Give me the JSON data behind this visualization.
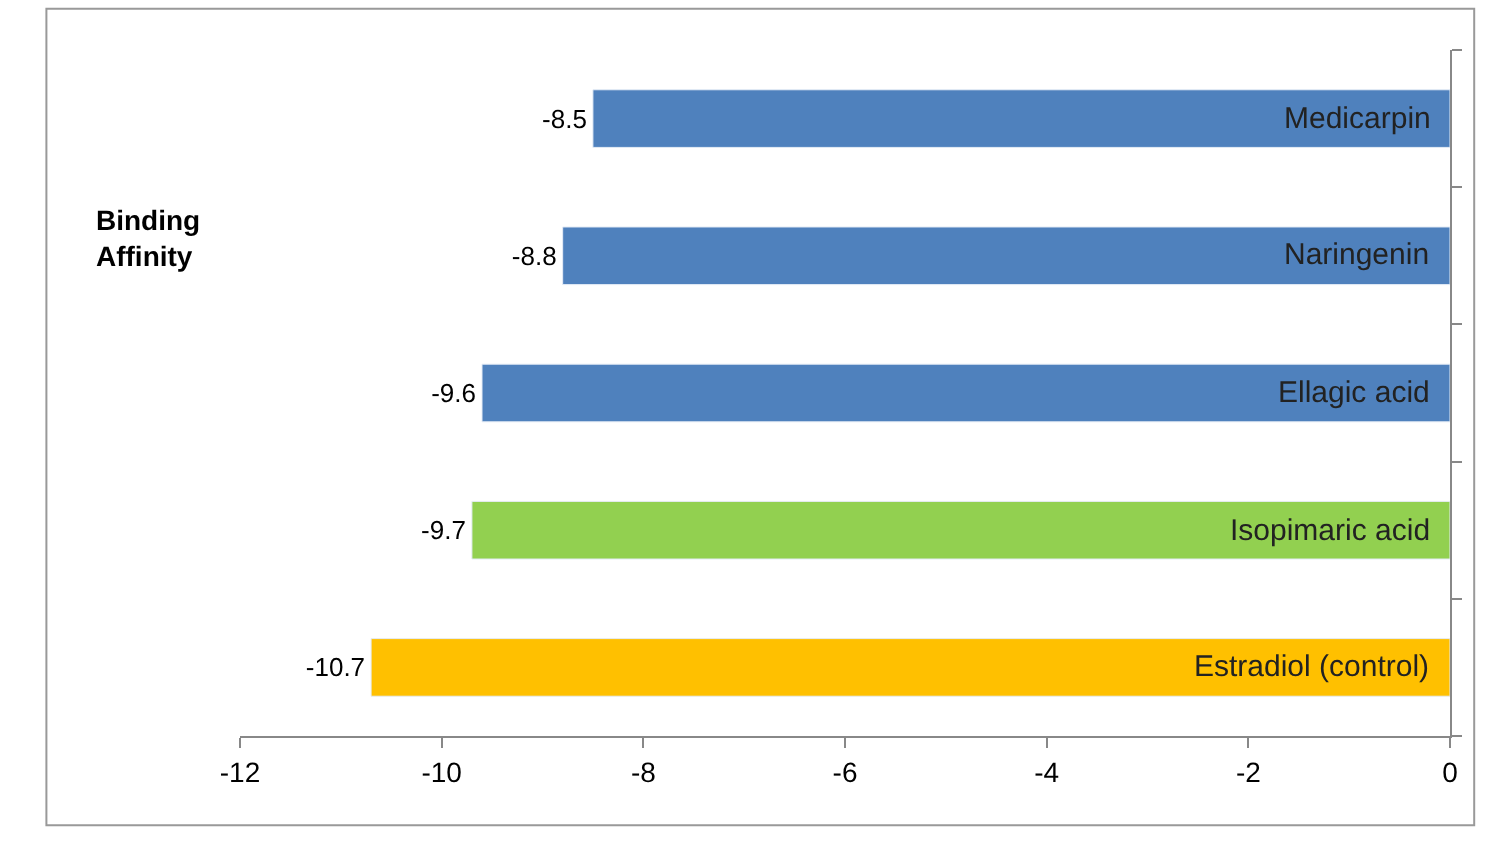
{
  "chart_data": {
    "type": "bar",
    "orientation": "horizontal",
    "ylabel": "Binding Affinity",
    "categories": [
      "Medicarpin",
      "Naringenin",
      "Ellagic acid",
      "Isopimaric acid",
      "Estradiol (control)"
    ],
    "values": [
      -8.5,
      -8.8,
      -9.6,
      -9.7,
      -10.7
    ],
    "colors": [
      "#4f81bd",
      "#4f81bd",
      "#4f81bd",
      "#92d050",
      "#ffc000"
    ],
    "xlim": [
      -12,
      0
    ],
    "xticks": [
      -12,
      -10,
      -8,
      -6,
      -4,
      -2,
      0
    ],
    "data_labels": true,
    "legend": false
  }
}
